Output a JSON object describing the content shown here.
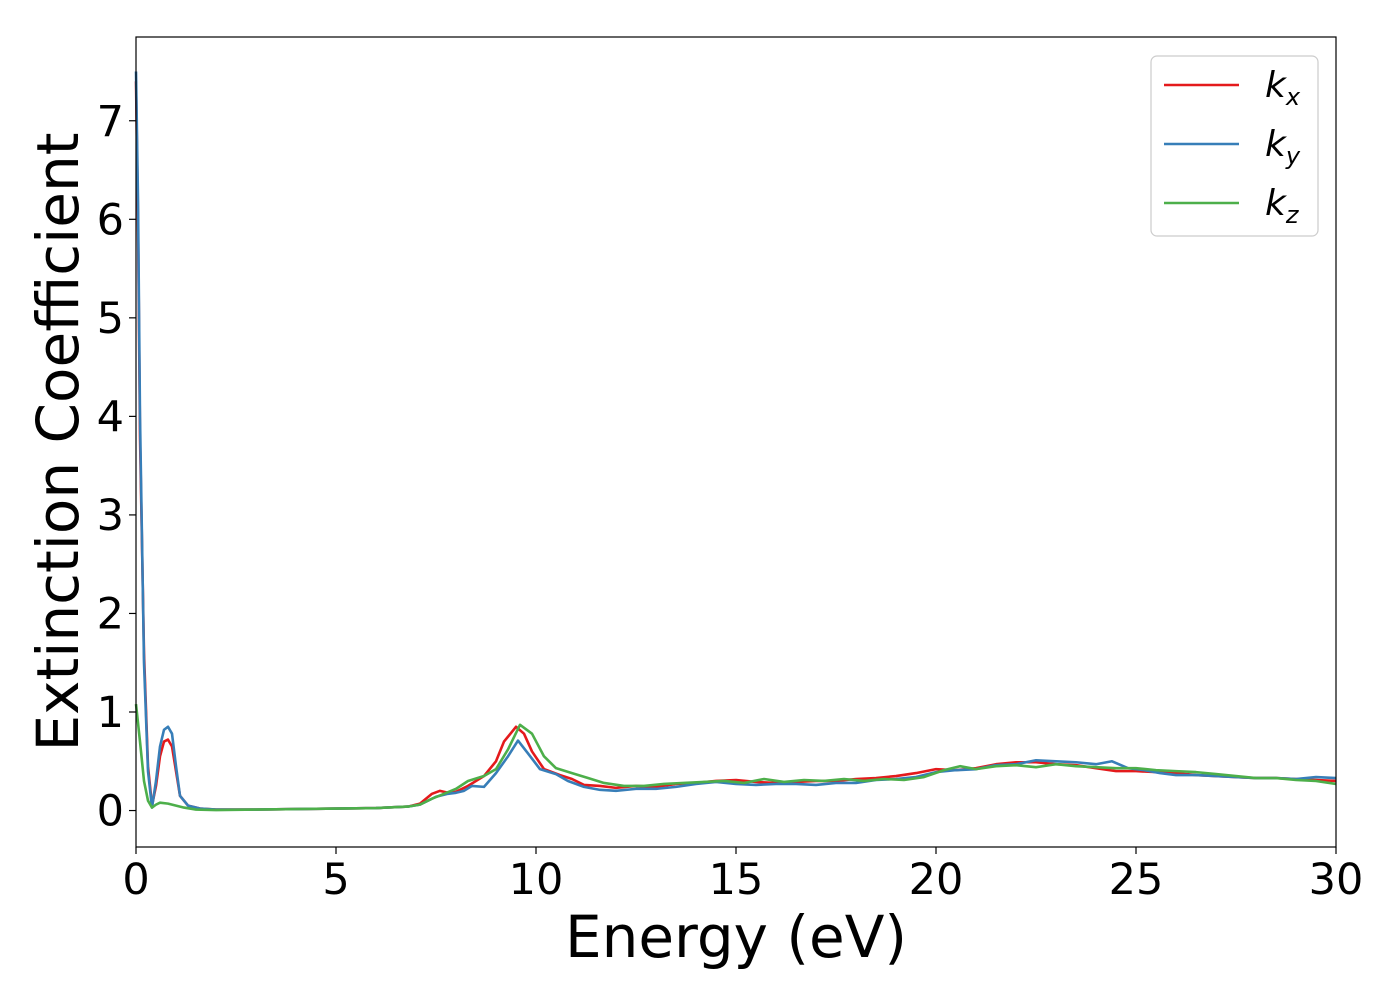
{
  "chart_data": {
    "type": "line",
    "xlabel": "Energy (eV)",
    "ylabel": "Extinction Coefficient",
    "xlim": [
      0,
      30
    ],
    "ylim": [
      -0.37,
      7.85
    ],
    "xticks": [
      0,
      5,
      10,
      15,
      20,
      25,
      30
    ],
    "yticks": [
      0,
      1,
      2,
      3,
      4,
      5,
      6,
      7
    ],
    "grid": false,
    "legend_position": "top-right",
    "series": [
      {
        "name": "k_x",
        "label_main": "k",
        "label_sub": "x",
        "color": "#e41a1c",
        "points": [
          [
            0,
            7.4
          ],
          [
            0.05,
            6.0
          ],
          [
            0.1,
            3.8
          ],
          [
            0.2,
            1.6
          ],
          [
            0.3,
            0.45
          ],
          [
            0.4,
            0.05
          ],
          [
            0.5,
            0.25
          ],
          [
            0.6,
            0.55
          ],
          [
            0.7,
            0.7
          ],
          [
            0.8,
            0.72
          ],
          [
            0.9,
            0.65
          ],
          [
            1.0,
            0.4
          ],
          [
            1.1,
            0.15
          ],
          [
            1.3,
            0.05
          ],
          [
            1.6,
            0.02
          ],
          [
            2,
            0.01
          ],
          [
            3,
            0.01
          ],
          [
            4,
            0.015
          ],
          [
            5,
            0.02
          ],
          [
            6,
            0.025
          ],
          [
            6.8,
            0.04
          ],
          [
            7.1,
            0.07
          ],
          [
            7.4,
            0.17
          ],
          [
            7.6,
            0.2
          ],
          [
            7.8,
            0.18
          ],
          [
            8.0,
            0.19
          ],
          [
            8.3,
            0.25
          ],
          [
            8.7,
            0.35
          ],
          [
            9.0,
            0.5
          ],
          [
            9.2,
            0.7
          ],
          [
            9.5,
            0.85
          ],
          [
            9.7,
            0.78
          ],
          [
            9.9,
            0.6
          ],
          [
            10.2,
            0.42
          ],
          [
            10.6,
            0.36
          ],
          [
            10.9,
            0.32
          ],
          [
            11.2,
            0.26
          ],
          [
            11.6,
            0.25
          ],
          [
            12,
            0.23
          ],
          [
            12.5,
            0.25
          ],
          [
            13,
            0.24
          ],
          [
            13.5,
            0.27
          ],
          [
            14,
            0.28
          ],
          [
            14.5,
            0.3
          ],
          [
            15,
            0.31
          ],
          [
            15.5,
            0.29
          ],
          [
            16,
            0.28
          ],
          [
            16.5,
            0.29
          ],
          [
            17,
            0.3
          ],
          [
            17.5,
            0.3
          ],
          [
            18,
            0.32
          ],
          [
            18.5,
            0.33
          ],
          [
            19,
            0.35
          ],
          [
            19.5,
            0.38
          ],
          [
            20,
            0.42
          ],
          [
            20.5,
            0.41
          ],
          [
            21,
            0.43
          ],
          [
            21.5,
            0.47
          ],
          [
            22,
            0.49
          ],
          [
            22.5,
            0.49
          ],
          [
            23,
            0.47
          ],
          [
            23.5,
            0.46
          ],
          [
            24,
            0.43
          ],
          [
            24.5,
            0.4
          ],
          [
            25,
            0.4
          ],
          [
            25.5,
            0.39
          ],
          [
            26,
            0.38
          ],
          [
            26.5,
            0.36
          ],
          [
            27,
            0.35
          ],
          [
            27.5,
            0.34
          ],
          [
            28,
            0.33
          ],
          [
            28.5,
            0.33
          ],
          [
            29,
            0.32
          ],
          [
            29.5,
            0.31
          ],
          [
            30,
            0.3
          ]
        ]
      },
      {
        "name": "k_y",
        "label_main": "k",
        "label_sub": "y",
        "color": "#377eb8",
        "points": [
          [
            0,
            7.5
          ],
          [
            0.05,
            6.2
          ],
          [
            0.1,
            4.0
          ],
          [
            0.2,
            1.5
          ],
          [
            0.3,
            0.4
          ],
          [
            0.4,
            0.03
          ],
          [
            0.5,
            0.3
          ],
          [
            0.6,
            0.65
          ],
          [
            0.7,
            0.82
          ],
          [
            0.8,
            0.85
          ],
          [
            0.9,
            0.78
          ],
          [
            1.0,
            0.45
          ],
          [
            1.1,
            0.15
          ],
          [
            1.3,
            0.05
          ],
          [
            1.6,
            0.02
          ],
          [
            2,
            0.01
          ],
          [
            3,
            0.01
          ],
          [
            4,
            0.015
          ],
          [
            5,
            0.02
          ],
          [
            6,
            0.025
          ],
          [
            6.8,
            0.04
          ],
          [
            7.1,
            0.06
          ],
          [
            7.5,
            0.14
          ],
          [
            7.8,
            0.17
          ],
          [
            8.0,
            0.18
          ],
          [
            8.2,
            0.2
          ],
          [
            8.4,
            0.25
          ],
          [
            8.7,
            0.24
          ],
          [
            9.0,
            0.38
          ],
          [
            9.3,
            0.55
          ],
          [
            9.55,
            0.71
          ],
          [
            9.8,
            0.58
          ],
          [
            10.1,
            0.42
          ],
          [
            10.5,
            0.37
          ],
          [
            10.8,
            0.3
          ],
          [
            11.2,
            0.24
          ],
          [
            11.6,
            0.21
          ],
          [
            12,
            0.2
          ],
          [
            12.5,
            0.22
          ],
          [
            13,
            0.22
          ],
          [
            13.5,
            0.24
          ],
          [
            14,
            0.27
          ],
          [
            14.5,
            0.29
          ],
          [
            15,
            0.27
          ],
          [
            15.5,
            0.26
          ],
          [
            16,
            0.27
          ],
          [
            16.5,
            0.27
          ],
          [
            17,
            0.26
          ],
          [
            17.5,
            0.28
          ],
          [
            18,
            0.28
          ],
          [
            18.5,
            0.31
          ],
          [
            19,
            0.32
          ],
          [
            19.5,
            0.34
          ],
          [
            20,
            0.39
          ],
          [
            20.5,
            0.41
          ],
          [
            21,
            0.42
          ],
          [
            21.5,
            0.46
          ],
          [
            22,
            0.47
          ],
          [
            22.5,
            0.51
          ],
          [
            23,
            0.5
          ],
          [
            23.5,
            0.49
          ],
          [
            24,
            0.47
          ],
          [
            24.4,
            0.5
          ],
          [
            24.8,
            0.43
          ],
          [
            25.2,
            0.41
          ],
          [
            25.6,
            0.38
          ],
          [
            26,
            0.36
          ],
          [
            26.5,
            0.36
          ],
          [
            27,
            0.35
          ],
          [
            27.5,
            0.34
          ],
          [
            28,
            0.33
          ],
          [
            28.5,
            0.33
          ],
          [
            29,
            0.32
          ],
          [
            29.5,
            0.34
          ],
          [
            30,
            0.33
          ]
        ]
      },
      {
        "name": "k_z",
        "label_main": "k",
        "label_sub": "z",
        "color": "#4daf4a",
        "points": [
          [
            0,
            1.08
          ],
          [
            0.1,
            0.7
          ],
          [
            0.2,
            0.3
          ],
          [
            0.3,
            0.1
          ],
          [
            0.4,
            0.03
          ],
          [
            0.5,
            0.06
          ],
          [
            0.6,
            0.08
          ],
          [
            0.8,
            0.07
          ],
          [
            1.0,
            0.05
          ],
          [
            1.2,
            0.03
          ],
          [
            1.5,
            0.01
          ],
          [
            2,
            0.005
          ],
          [
            3,
            0.01
          ],
          [
            4,
            0.015
          ],
          [
            5,
            0.02
          ],
          [
            6,
            0.025
          ],
          [
            6.8,
            0.04
          ],
          [
            7.1,
            0.06
          ],
          [
            7.4,
            0.12
          ],
          [
            7.7,
            0.17
          ],
          [
            8.0,
            0.22
          ],
          [
            8.3,
            0.3
          ],
          [
            8.7,
            0.35
          ],
          [
            9.0,
            0.42
          ],
          [
            9.3,
            0.62
          ],
          [
            9.6,
            0.87
          ],
          [
            9.9,
            0.78
          ],
          [
            10.2,
            0.55
          ],
          [
            10.5,
            0.43
          ],
          [
            10.9,
            0.38
          ],
          [
            11.3,
            0.33
          ],
          [
            11.7,
            0.28
          ],
          [
            12.2,
            0.25
          ],
          [
            12.7,
            0.25
          ],
          [
            13.2,
            0.27
          ],
          [
            13.7,
            0.28
          ],
          [
            14.2,
            0.29
          ],
          [
            14.7,
            0.3
          ],
          [
            15.2,
            0.28
          ],
          [
            15.7,
            0.32
          ],
          [
            16.2,
            0.29
          ],
          [
            16.7,
            0.31
          ],
          [
            17.2,
            0.3
          ],
          [
            17.7,
            0.32
          ],
          [
            18.2,
            0.3
          ],
          [
            18.7,
            0.32
          ],
          [
            19.2,
            0.31
          ],
          [
            19.7,
            0.34
          ],
          [
            20.2,
            0.41
          ],
          [
            20.6,
            0.45
          ],
          [
            21,
            0.42
          ],
          [
            21.5,
            0.45
          ],
          [
            22,
            0.46
          ],
          [
            22.5,
            0.44
          ],
          [
            23,
            0.47
          ],
          [
            23.5,
            0.45
          ],
          [
            24,
            0.44
          ],
          [
            24.5,
            0.43
          ],
          [
            25,
            0.43
          ],
          [
            25.5,
            0.41
          ],
          [
            26,
            0.4
          ],
          [
            26.5,
            0.39
          ],
          [
            27,
            0.37
          ],
          [
            27.5,
            0.35
          ],
          [
            28,
            0.33
          ],
          [
            28.5,
            0.33
          ],
          [
            29,
            0.31
          ],
          [
            29.5,
            0.3
          ],
          [
            30,
            0.27
          ]
        ]
      }
    ]
  }
}
